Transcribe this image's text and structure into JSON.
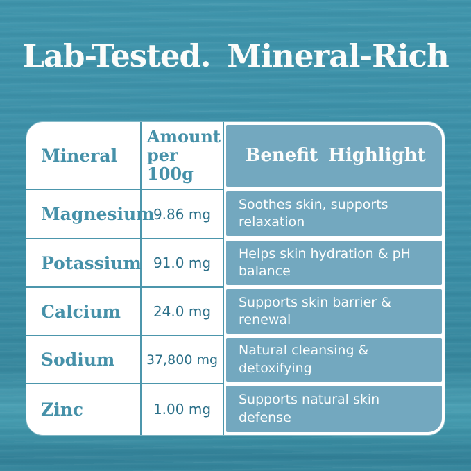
{
  "page": {
    "title": "Lab-Tested. Mineral-Rich"
  },
  "table": {
    "header": {
      "mineral": "Mineral",
      "amount_line1": "Amount",
      "amount_line2": "per 100g",
      "benefit": "Benefit Highlight"
    },
    "rows": [
      {
        "mineral": "Magnesium",
        "amount": "9.86 mg",
        "benefit": "Soothes skin, supports relaxation"
      },
      {
        "mineral": "Potassium",
        "amount": "91.0 mg",
        "benefit": "Helps skin hydration & pH balance"
      },
      {
        "mineral": "Calcium",
        "amount": "24.0 mg",
        "benefit": "Supports skin barrier & renewal"
      },
      {
        "mineral": "Sodium",
        "amount": "37,800 mg",
        "benefit": "Natural cleansing & detoxifying"
      },
      {
        "mineral": "Zinc",
        "amount": "1.00 mg",
        "benefit": "Supports natural skin defense"
      }
    ]
  },
  "colors": {
    "background_teal": "#3E92AA",
    "benefit_cell_blue": "#73A8BF",
    "mineral_text_teal": "#4691A9",
    "amount_text_teal": "#2C7089",
    "divider_teal": "#4C96AC",
    "card_white": "#FFFFFF",
    "title_white": "#FBFCFA"
  }
}
